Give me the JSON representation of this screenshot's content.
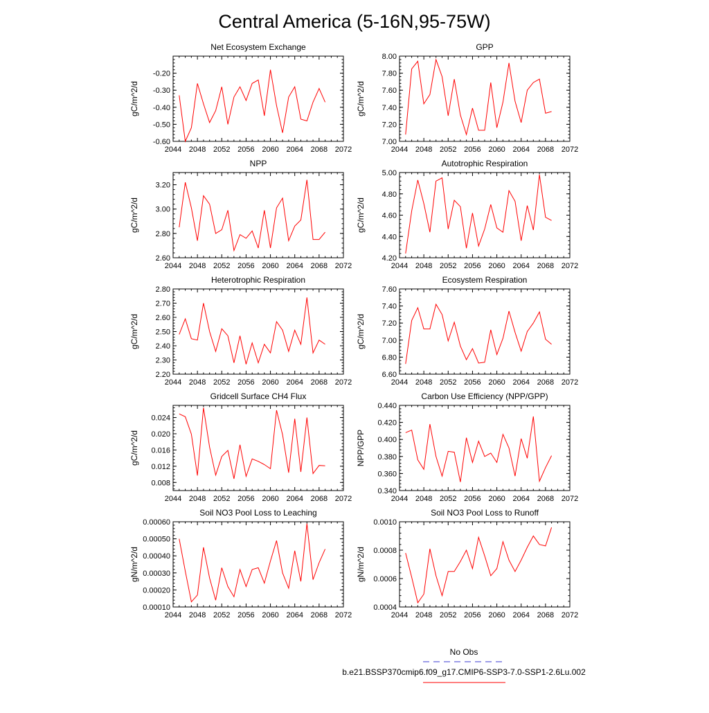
{
  "title": "Central America (5-16N,95-75W)",
  "colors": {
    "series": "#ff0000",
    "obs": "#3a3ad0",
    "frame": "#000000"
  },
  "legend": {
    "obs_label": "No Obs",
    "case_label": "b.e21.BSSP370cmip6.f09_g17.CMIP6-SSP3-7.0-SSP1-2.6Lu.002"
  },
  "chart_data": [
    {
      "type": "line",
      "title": "Net Ecosystem Exchange",
      "ylabel": "gC/m^2/d",
      "xlim": [
        2044,
        2072
      ],
      "xticks": [
        "2044",
        "2048",
        "2052",
        "2056",
        "2060",
        "2064",
        "2068",
        "2072"
      ],
      "ylim": [
        -0.6,
        -0.1
      ],
      "yticks": [
        "-0.60",
        "-0.50",
        "-0.40",
        "-0.30",
        "-0.20"
      ],
      "x": [
        2045,
        2046,
        2047,
        2048,
        2049,
        2050,
        2051,
        2052,
        2053,
        2054,
        2055,
        2056,
        2057,
        2058,
        2059,
        2060,
        2061,
        2062,
        2063,
        2064,
        2065,
        2066,
        2067,
        2068,
        2069
      ],
      "values": [
        -0.33,
        -0.6,
        -0.52,
        -0.26,
        -0.38,
        -0.49,
        -0.42,
        -0.28,
        -0.5,
        -0.34,
        -0.28,
        -0.36,
        -0.26,
        -0.24,
        -0.45,
        -0.18,
        -0.39,
        -0.55,
        -0.34,
        -0.28,
        -0.47,
        -0.48,
        -0.37,
        -0.29,
        -0.37
      ]
    },
    {
      "type": "line",
      "title": "GPP",
      "ylabel": "gC/m^2/d",
      "xlim": [
        2044,
        2072
      ],
      "xticks": [
        "2044",
        "2048",
        "2052",
        "2056",
        "2060",
        "2064",
        "2068",
        "2072"
      ],
      "ylim": [
        7.0,
        8.0
      ],
      "yticks": [
        "7.00",
        "7.20",
        "7.40",
        "7.60",
        "7.80",
        "8.00"
      ],
      "x": [
        2045,
        2046,
        2047,
        2048,
        2049,
        2050,
        2051,
        2052,
        2053,
        2054,
        2055,
        2056,
        2057,
        2058,
        2059,
        2060,
        2061,
        2062,
        2063,
        2064,
        2065,
        2066,
        2067,
        2068,
        2069
      ],
      "values": [
        7.08,
        7.85,
        7.94,
        7.44,
        7.55,
        7.96,
        7.76,
        7.3,
        7.73,
        7.31,
        7.08,
        7.39,
        7.13,
        7.13,
        7.69,
        7.16,
        7.46,
        7.92,
        7.47,
        7.22,
        7.6,
        7.69,
        7.73,
        7.33,
        7.35
      ]
    },
    {
      "type": "line",
      "title": "NPP",
      "ylabel": "gC/m^2/d",
      "xlim": [
        2044,
        2072
      ],
      "xticks": [
        "2044",
        "2048",
        "2052",
        "2056",
        "2060",
        "2064",
        "2068",
        "2072"
      ],
      "ylim": [
        2.6,
        3.3
      ],
      "yticks": [
        "2.60",
        "2.80",
        "3.00",
        "3.20"
      ],
      "x": [
        2045,
        2046,
        2047,
        2048,
        2049,
        2050,
        2051,
        2052,
        2053,
        2054,
        2055,
        2056,
        2057,
        2058,
        2059,
        2060,
        2061,
        2062,
        2063,
        2064,
        2065,
        2066,
        2067,
        2068,
        2069
      ],
      "values": [
        2.85,
        3.22,
        3.01,
        2.74,
        3.11,
        3.04,
        2.8,
        2.83,
        2.99,
        2.66,
        2.79,
        2.76,
        2.82,
        2.68,
        2.99,
        2.68,
        3.01,
        3.09,
        2.74,
        2.86,
        2.91,
        3.24,
        2.75,
        2.75,
        2.81
      ]
    },
    {
      "type": "line",
      "title": "Autotrophic Respiration",
      "ylabel": "gC/m^2/d",
      "xlim": [
        2044,
        2072
      ],
      "xticks": [
        "2044",
        "2048",
        "2052",
        "2056",
        "2060",
        "2064",
        "2068",
        "2072"
      ],
      "ylim": [
        4.2,
        5.0
      ],
      "yticks": [
        "4.20",
        "4.40",
        "4.60",
        "4.80",
        "5.00"
      ],
      "x": [
        2045,
        2046,
        2047,
        2048,
        2049,
        2050,
        2051,
        2052,
        2053,
        2054,
        2055,
        2056,
        2057,
        2058,
        2059,
        2060,
        2061,
        2062,
        2063,
        2064,
        2065,
        2066,
        2067,
        2068,
        2069
      ],
      "values": [
        4.24,
        4.64,
        4.93,
        4.71,
        4.44,
        4.92,
        4.95,
        4.47,
        4.74,
        4.68,
        4.29,
        4.62,
        4.31,
        4.47,
        4.7,
        4.48,
        4.44,
        4.83,
        4.73,
        4.36,
        4.69,
        4.46,
        4.98,
        4.58,
        4.55
      ]
    },
    {
      "type": "line",
      "title": "Heterotrophic Respiration",
      "ylabel": "gC/m^2/d",
      "xlim": [
        2044,
        2072
      ],
      "xticks": [
        "2044",
        "2048",
        "2052",
        "2056",
        "2060",
        "2064",
        "2068",
        "2072"
      ],
      "ylim": [
        2.2,
        2.8
      ],
      "yticks": [
        "2.20",
        "2.30",
        "2.40",
        "2.50",
        "2.60",
        "2.70",
        "2.80"
      ],
      "x": [
        2045,
        2046,
        2047,
        2048,
        2049,
        2050,
        2051,
        2052,
        2053,
        2054,
        2055,
        2056,
        2057,
        2058,
        2059,
        2060,
        2061,
        2062,
        2063,
        2064,
        2065,
        2066,
        2067,
        2068,
        2069
      ],
      "values": [
        2.48,
        2.59,
        2.45,
        2.44,
        2.7,
        2.5,
        2.36,
        2.52,
        2.47,
        2.28,
        2.47,
        2.27,
        2.42,
        2.28,
        2.41,
        2.35,
        2.57,
        2.51,
        2.36,
        2.51,
        2.41,
        2.74,
        2.35,
        2.44,
        2.41
      ]
    },
    {
      "type": "line",
      "title": "Ecosystem Respiration",
      "ylabel": "gC/m^2/d",
      "xlim": [
        2044,
        2072
      ],
      "xticks": [
        "2044",
        "2048",
        "2052",
        "2056",
        "2060",
        "2064",
        "2068",
        "2072"
      ],
      "ylim": [
        6.6,
        7.6
      ],
      "yticks": [
        "6.60",
        "6.80",
        "7.00",
        "7.20",
        "7.40",
        "7.60"
      ],
      "x": [
        2045,
        2046,
        2047,
        2048,
        2049,
        2050,
        2051,
        2052,
        2053,
        2054,
        2055,
        2056,
        2057,
        2058,
        2059,
        2060,
        2061,
        2062,
        2063,
        2064,
        2065,
        2066,
        2067,
        2068,
        2069
      ],
      "values": [
        6.72,
        7.23,
        7.38,
        7.13,
        7.13,
        7.42,
        7.3,
        6.99,
        7.21,
        6.93,
        6.77,
        6.9,
        6.73,
        6.74,
        7.12,
        6.83,
        7.02,
        7.34,
        7.09,
        6.87,
        7.1,
        7.2,
        7.33,
        7.01,
        6.95
      ]
    },
    {
      "type": "line",
      "title": "Gridcell Surface CH4 Flux",
      "ylabel": "gC/m^2/d",
      "xlim": [
        2044,
        2072
      ],
      "xticks": [
        "2044",
        "2048",
        "2052",
        "2056",
        "2060",
        "2064",
        "2068",
        "2072"
      ],
      "ylim": [
        0.006,
        0.027
      ],
      "yticks": [
        "0.008",
        "0.012",
        "0.016",
        "0.020",
        "0.024"
      ],
      "x": [
        2045,
        2046,
        2047,
        2048,
        2049,
        2050,
        2051,
        2052,
        2053,
        2054,
        2055,
        2056,
        2057,
        2058,
        2059,
        2060,
        2061,
        2062,
        2063,
        2064,
        2065,
        2066,
        2067,
        2068,
        2069
      ],
      "values": [
        0.0249,
        0.0242,
        0.0199,
        0.0097,
        0.0264,
        0.0167,
        0.0098,
        0.0144,
        0.0159,
        0.0089,
        0.0173,
        0.0095,
        0.0138,
        0.0132,
        0.0124,
        0.0114,
        0.0258,
        0.0198,
        0.0104,
        0.0237,
        0.0106,
        0.024,
        0.0102,
        0.0122,
        0.0121
      ]
    },
    {
      "type": "line",
      "title": "Carbon Use Efficiency (NPP/GPP)",
      "ylabel": "NPP/GPP",
      "xlim": [
        2044,
        2072
      ],
      "xticks": [
        "2044",
        "2048",
        "2052",
        "2056",
        "2060",
        "2064",
        "2068",
        "2072"
      ],
      "ylim": [
        0.34,
        0.44
      ],
      "yticks": [
        "0.340",
        "0.360",
        "0.380",
        "0.400",
        "0.420",
        "0.440"
      ],
      "x": [
        2045,
        2046,
        2047,
        2048,
        2049,
        2050,
        2051,
        2052,
        2053,
        2054,
        2055,
        2056,
        2057,
        2058,
        2059,
        2060,
        2061,
        2062,
        2063,
        2064,
        2065,
        2066,
        2067,
        2068,
        2069
      ],
      "values": [
        0.408,
        0.411,
        0.376,
        0.365,
        0.418,
        0.38,
        0.357,
        0.386,
        0.385,
        0.35,
        0.402,
        0.373,
        0.398,
        0.38,
        0.384,
        0.373,
        0.406,
        0.39,
        0.357,
        0.401,
        0.378,
        0.427,
        0.351,
        0.367,
        0.381
      ]
    },
    {
      "type": "line",
      "title": "Soil NO3 Pool Loss to Leaching",
      "ylabel": "gN/m^2/d",
      "xlim": [
        2044,
        2072
      ],
      "xticks": [
        "2044",
        "2048",
        "2052",
        "2056",
        "2060",
        "2064",
        "2068",
        "2072"
      ],
      "ylim": [
        0.0001,
        0.0006
      ],
      "yticks": [
        "0.00010",
        "0.00020",
        "0.00030",
        "0.00040",
        "0.00050",
        "0.00060"
      ],
      "x": [
        2045,
        2046,
        2047,
        2048,
        2049,
        2050,
        2051,
        2052,
        2053,
        2054,
        2055,
        2056,
        2057,
        2058,
        2059,
        2060,
        2061,
        2062,
        2063,
        2064,
        2065,
        2066,
        2067,
        2068,
        2069
      ],
      "values": [
        0.0005,
        0.00031,
        0.00013,
        0.00017,
        0.00045,
        0.00027,
        0.00014,
        0.00033,
        0.00022,
        0.00016,
        0.00032,
        0.00022,
        0.00032,
        0.00033,
        0.00024,
        0.00037,
        0.00049,
        0.0003,
        0.00021,
        0.00043,
        0.00025,
        0.00059,
        0.00026,
        0.00036,
        0.00044
      ]
    },
    {
      "type": "line",
      "title": "Soil NO3 Pool Loss to Runoff",
      "ylabel": "gN/m^2/d",
      "xlim": [
        2044,
        2072
      ],
      "xticks": [
        "2044",
        "2048",
        "2052",
        "2056",
        "2060",
        "2064",
        "2068",
        "2072"
      ],
      "ylim": [
        0.0004,
        0.001
      ],
      "yticks": [
        "0.0004",
        "0.0006",
        "0.0008",
        "0.0010"
      ],
      "x": [
        2045,
        2046,
        2047,
        2048,
        2049,
        2050,
        2051,
        2052,
        2053,
        2054,
        2055,
        2056,
        2057,
        2058,
        2059,
        2060,
        2061,
        2062,
        2063,
        2064,
        2065,
        2066,
        2067,
        2068,
        2069
      ],
      "values": [
        0.00078,
        0.00061,
        0.00043,
        0.00049,
        0.00081,
        0.00062,
        0.00048,
        0.00065,
        0.00065,
        0.00072,
        0.0008,
        0.00067,
        0.00089,
        0.00076,
        0.00062,
        0.00067,
        0.00086,
        0.00073,
        0.00065,
        0.00073,
        0.00082,
        0.0009,
        0.00084,
        0.00083,
        0.00096
      ]
    }
  ]
}
